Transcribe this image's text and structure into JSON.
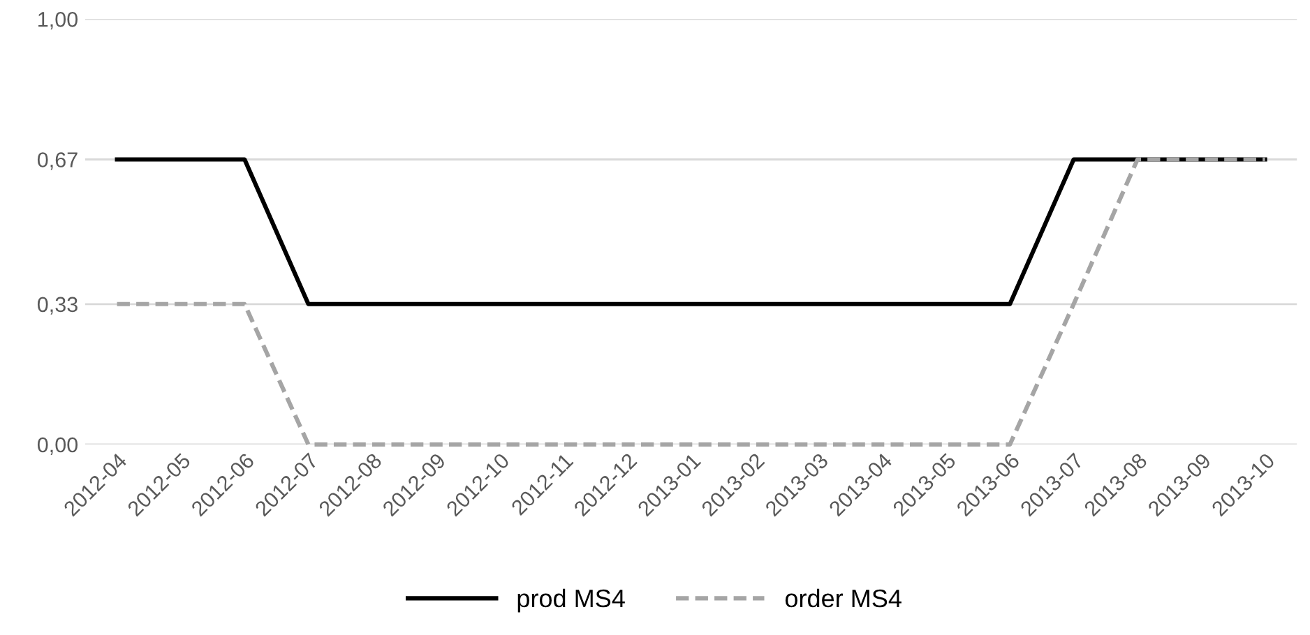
{
  "chart_data": {
    "type": "line",
    "categories": [
      "2012-04",
      "2012-05",
      "2012-06",
      "2012-07",
      "2012-08",
      "2012-09",
      "2012-10",
      "2012-11",
      "2012-12",
      "2013-01",
      "2013-02",
      "2013-03",
      "2013-04",
      "2013-05",
      "2013-06",
      "2013-07",
      "2013-08",
      "2013-09",
      "2013-10"
    ],
    "series": [
      {
        "name": "prod MS4",
        "color": "#000000",
        "line_style": "solid",
        "values": [
          0.67,
          0.67,
          0.67,
          0.33,
          0.33,
          0.33,
          0.33,
          0.33,
          0.33,
          0.33,
          0.33,
          0.33,
          0.33,
          0.33,
          0.33,
          0.67,
          0.67,
          0.67,
          0.67
        ]
      },
      {
        "name": "order MS4",
        "color": "#a5a5a5",
        "line_style": "dashed",
        "values": [
          0.33,
          0.33,
          0.33,
          0,
          0,
          0,
          0,
          0,
          0,
          0,
          0,
          0,
          0,
          0,
          0,
          0.33,
          0.67,
          0.67,
          0.67
        ]
      }
    ],
    "ylim": [
      0,
      1
    ],
    "yticks": [
      {
        "value": 0,
        "label": "0,00"
      },
      {
        "value": 0.33,
        "label": "0,33"
      },
      {
        "value": 0.67,
        "label": "0,67"
      },
      {
        "value": 1,
        "label": "1,00"
      }
    ],
    "grid": "y",
    "legend": "bottom",
    "marker": "none"
  }
}
